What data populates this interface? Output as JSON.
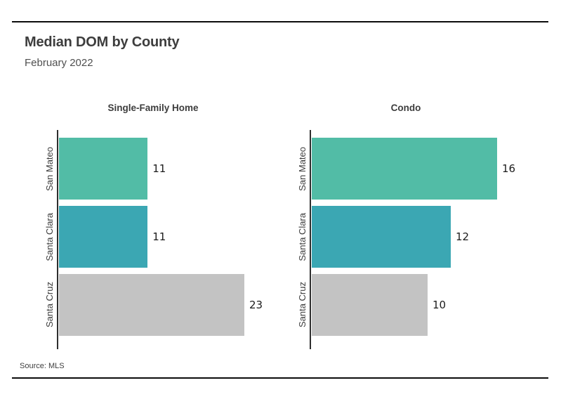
{
  "header": {
    "title": "Median DOM by County",
    "subtitle": "February 2022"
  },
  "footer": {
    "source": "Source:  MLS"
  },
  "colors": {
    "san_mateo_bar": "#52bca6",
    "santa_clara_bar": "#3ba7b3",
    "santa_cruz_bar": "#c3c3c3",
    "axis": "#2e2e2e",
    "rule": "#0c0c0c",
    "title_text": "#3d3d3d"
  },
  "chart_data": [
    {
      "type": "bar",
      "orientation": "horizontal",
      "title": "Single-Family Home",
      "categories": [
        "San Mateo",
        "Santa Clara",
        "Santa Cruz"
      ],
      "values": [
        11,
        11,
        23
      ],
      "colors": [
        "#52bca6",
        "#3ba7b3",
        "#c3c3c3"
      ],
      "xlim": [
        0,
        23
      ],
      "grid": false,
      "legend": false,
      "value_labels_shown": true
    },
    {
      "type": "bar",
      "orientation": "horizontal",
      "title": "Condo",
      "categories": [
        "San Mateo",
        "Santa Clara",
        "Santa Cruz"
      ],
      "values": [
        16,
        12,
        10
      ],
      "colors": [
        "#52bca6",
        "#3ba7b3",
        "#c3c3c3"
      ],
      "xlim": [
        0,
        16
      ],
      "grid": false,
      "legend": false,
      "value_labels_shown": true
    }
  ]
}
